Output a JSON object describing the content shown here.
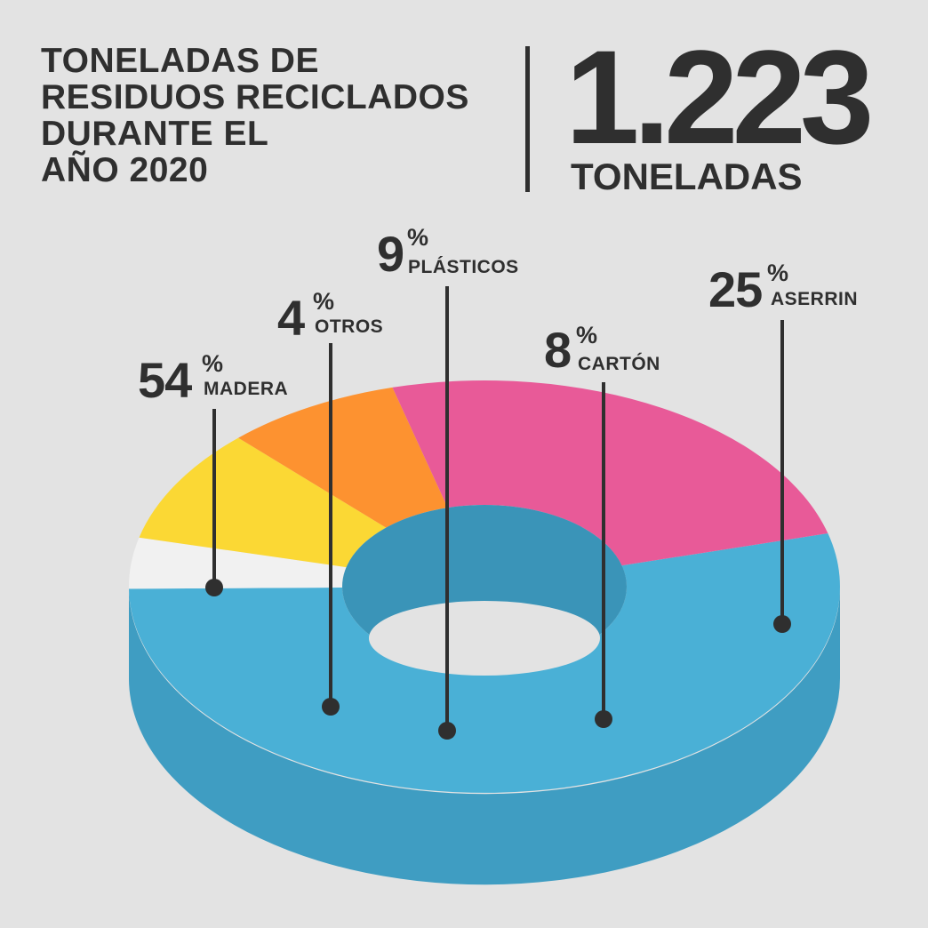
{
  "title_lines": [
    "TONELADAS DE",
    "RESIDUOS RECICLADOS",
    "DURANTE EL",
    "AÑO 2020"
  ],
  "total": {
    "value": "1.223",
    "unit": "TONELADAS"
  },
  "chart_data": {
    "type": "pie",
    "style": "3d-donut",
    "unit": "%",
    "slices": [
      {
        "label": "MADERA",
        "value": 54,
        "display": "54",
        "color": "#4ab0d6",
        "side_color": "#3f9dc2"
      },
      {
        "label": "OTROS",
        "value": 4,
        "display": "4",
        "color": "#f1f1f1",
        "side_color": "#f3f3f3"
      },
      {
        "label": "PLÁSTICOS",
        "value": 9,
        "display": "9",
        "color": "#fbd834",
        "side_color": "#ebcb33"
      },
      {
        "label": "CARTÓN",
        "value": 8,
        "display": "8",
        "color": "#fd9230",
        "side_color": "#e1822f"
      },
      {
        "label": "ASERRIN",
        "value": 25,
        "display": "25",
        "color": "#e85a98",
        "side_color": "#c4518a"
      }
    ]
  },
  "colors": {
    "background": "#e3e3e3",
    "text": "#2f2f2f"
  }
}
